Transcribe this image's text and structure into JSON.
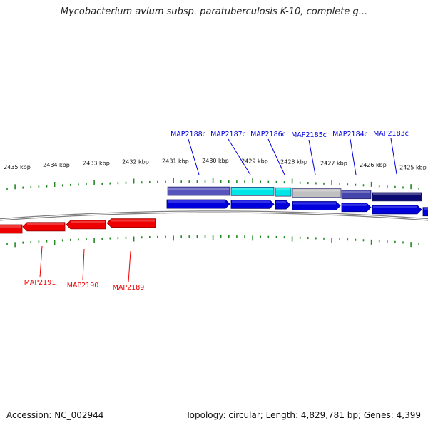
{
  "title": "Mycobacterium avium subsp. paratuberculosis K-10, complete g...",
  "footer": {
    "accession": "Accession: NC_002944",
    "summary": "Topology: circular; Length: 4,829,781 bp; Genes: 4,399"
  },
  "colors": {
    "forward": "#0000dd",
    "reverse": "#ee0000",
    "ticks": "#228822",
    "backbone": "#808080"
  },
  "scale_labels": [
    "2435 kbp",
    "2434 kbp",
    "2433 kbp",
    "2432 kbp",
    "2431 kbp",
    "2430 kbp",
    "2429 kbp",
    "2428 kbp",
    "2427 kbp",
    "2426 kbp",
    "2425 kbp"
  ],
  "forward_genes": [
    {
      "name": "MAP2188c"
    },
    {
      "name": "MAP2187c"
    },
    {
      "name": "MAP2186c"
    },
    {
      "name": "MAP2185c"
    },
    {
      "name": "MAP2184c"
    },
    {
      "name": "MAP2183c"
    }
  ],
  "reverse_genes": [
    {
      "name": "MAP2191"
    },
    {
      "name": "MAP2190"
    },
    {
      "name": "MAP2189"
    }
  ],
  "highlight_colors": [
    "#5555bb",
    "#00e5e5",
    "#00e5e5",
    "#c0c0c0",
    "#4444aa",
    "#0a0a70"
  ]
}
